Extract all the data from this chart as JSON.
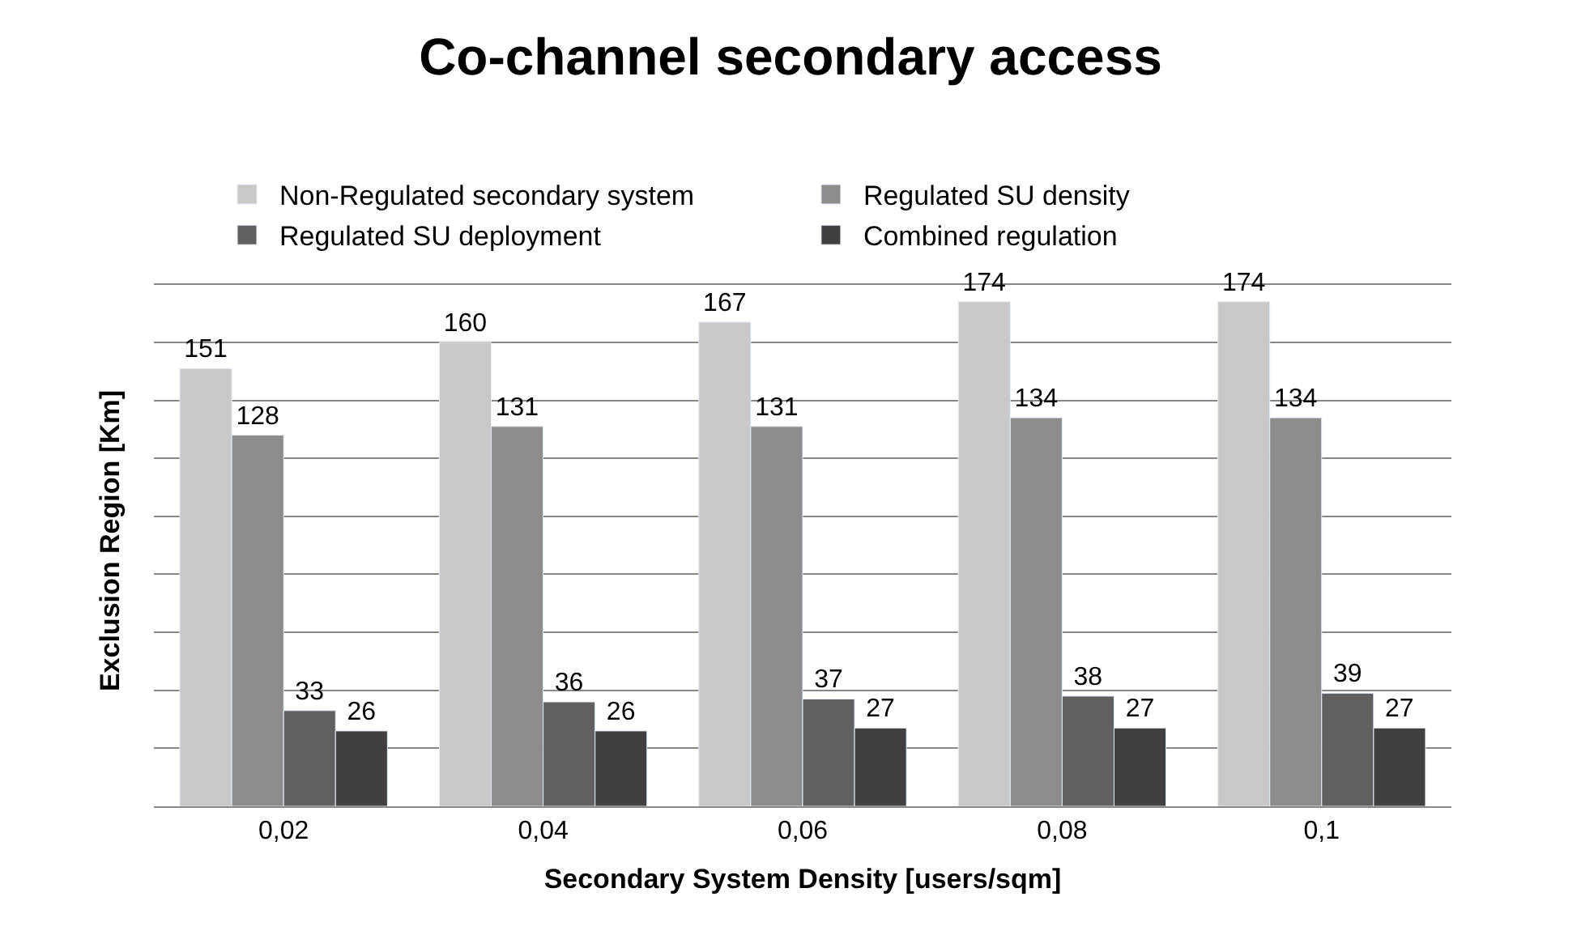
{
  "chart_data": {
    "type": "bar",
    "title": "Co-channel secondary access",
    "xlabel": "Secondary System Density [users/sqm]",
    "ylabel": "Exclusion Region [Km]",
    "categories": [
      "0,02",
      "0,04",
      "0,06",
      "0,08",
      "0,1"
    ],
    "series": [
      {
        "name": "Non-Regulated secondary system",
        "color": "#c8c8c8",
        "values": [
          151,
          160,
          167,
          174,
          174
        ]
      },
      {
        "name": "Regulated SU density",
        "color": "#8c8c8c",
        "values": [
          128,
          131,
          131,
          134,
          134
        ]
      },
      {
        "name": "Regulated SU deployment",
        "color": "#606060",
        "values": [
          33,
          36,
          37,
          38,
          39
        ]
      },
      {
        "name": "Combined regulation",
        "color": "#404040",
        "values": [
          26,
          26,
          27,
          27,
          27
        ]
      }
    ],
    "tick_labels": "x",
    "grid": "y",
    "legend": "top",
    "data_labels": true
  }
}
